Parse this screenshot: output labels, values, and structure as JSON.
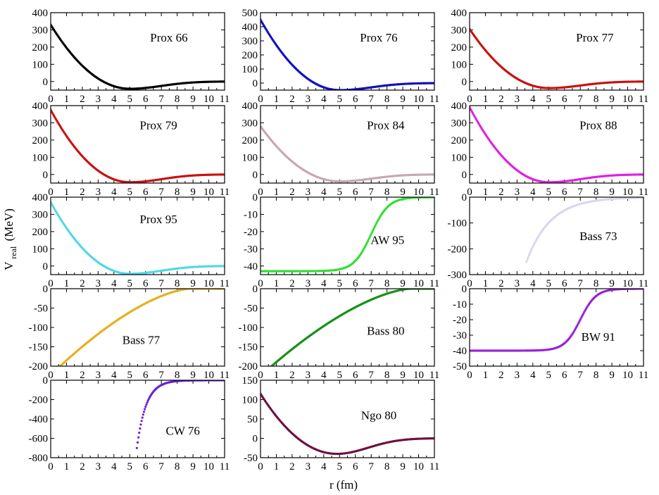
{
  "figure": {
    "xlabel": "r (fm)",
    "ylabel_main": "V",
    "ylabel_sub": "real",
    "ylabel_unit": "(MeV)",
    "x_ticks": [
      0,
      1,
      2,
      3,
      4,
      5,
      6,
      7,
      8,
      9,
      10,
      11
    ]
  },
  "chart_data": [
    {
      "type": "scatter",
      "label": "Prox 66",
      "color": "#000000",
      "xlim": [
        0,
        11
      ],
      "ylim": [
        -50,
        400
      ],
      "yticks": [
        0,
        100,
        200,
        300,
        400
      ],
      "model": {
        "kind": "prox",
        "v0": 330,
        "vmin": -42,
        "rmin": 5.0,
        "tail": 0.5
      }
    },
    {
      "type": "scatter",
      "label": "Prox 76",
      "color": "#1010c0",
      "xlim": [
        0,
        11
      ],
      "ylim": [
        -50,
        500
      ],
      "yticks": [
        0,
        100,
        200,
        300,
        400,
        500
      ],
      "model": {
        "kind": "prox",
        "v0": 450,
        "vmin": -50,
        "rmin": 5.0,
        "tail": 0.4
      }
    },
    {
      "type": "scatter",
      "label": "Prox 77",
      "color": "#cc1010",
      "xlim": [
        0,
        11
      ],
      "ylim": [
        -50,
        400
      ],
      "yticks": [
        0,
        100,
        200,
        300,
        400
      ],
      "model": {
        "kind": "prox",
        "v0": 305,
        "vmin": -38,
        "rmin": 5.0,
        "tail": 0.5
      }
    },
    {
      "type": "scatter",
      "label": "Prox 79",
      "color": "#cc1010",
      "xlim": [
        0,
        11
      ],
      "ylim": [
        -50,
        400
      ],
      "yticks": [
        0,
        100,
        200,
        300,
        400
      ],
      "model": {
        "kind": "prox",
        "v0": 375,
        "vmin": -45,
        "rmin": 5.0,
        "tail": 0.5
      }
    },
    {
      "type": "scatter",
      "label": "Prox 84",
      "color": "#c8a8b0",
      "xlim": [
        0,
        11
      ],
      "ylim": [
        -50,
        400
      ],
      "yticks": [
        0,
        100,
        200,
        300,
        400
      ],
      "model": {
        "kind": "prox",
        "v0": 280,
        "vmin": -40,
        "rmin": 5.0,
        "tail": 0.5
      }
    },
    {
      "type": "scatter",
      "label": "Prox 88",
      "color": "#e020e0",
      "xlim": [
        0,
        11
      ],
      "ylim": [
        -50,
        400
      ],
      "yticks": [
        0,
        100,
        200,
        300,
        400
      ],
      "model": {
        "kind": "prox",
        "v0": 390,
        "vmin": -45,
        "rmin": 5.0,
        "tail": 0.5
      }
    },
    {
      "type": "scatter",
      "label": "Prox 95",
      "color": "#50d8e8",
      "xlim": [
        0,
        11
      ],
      "ylim": [
        -50,
        400
      ],
      "yticks": [
        0,
        100,
        200,
        300,
        400
      ],
      "model": {
        "kind": "prox",
        "v0": 370,
        "vmin": -45,
        "rmin": 5.0,
        "tail": 0.5
      }
    },
    {
      "type": "scatter",
      "label": "AW 95",
      "color": "#30e030",
      "xlim": [
        0,
        11
      ],
      "ylim": [
        -45,
        0
      ],
      "yticks": [
        -40,
        -30,
        -20,
        -10,
        0
      ],
      "model": {
        "kind": "woods",
        "v0": -43,
        "r0": 7.0,
        "a": 0.55
      }
    },
    {
      "type": "scatter",
      "label": "Bass 73",
      "color": "#d8d8ec",
      "xlim": [
        0,
        11
      ],
      "ylim": [
        -300,
        0
      ],
      "yticks": [
        -300,
        -200,
        -100,
        0
      ],
      "model": {
        "kind": "bass73",
        "xstart": 3.6,
        "a": 250,
        "b": 0.66
      }
    },
    {
      "type": "scatter",
      "label": "Bass 77",
      "color": "#e8b020",
      "xlim": [
        0,
        11
      ],
      "ylim": [
        -200,
        0
      ],
      "yticks": [
        -200,
        -150,
        -100,
        -50,
        0
      ],
      "model": {
        "kind": "bass",
        "xstart": 0.6,
        "k": 0.35,
        "rend": 8.8
      }
    },
    {
      "type": "scatter",
      "label": "Bass 80",
      "color": "#189018",
      "xlim": [
        0,
        11
      ],
      "ylim": [
        -200,
        0
      ],
      "yticks": [
        -200,
        -150,
        -100,
        -50,
        0
      ],
      "model": {
        "kind": "bass",
        "xstart": 0.7,
        "k": 0.38,
        "rend": 9.5
      }
    },
    {
      "type": "scatter",
      "label": "BW 91",
      "color": "#9a20d8",
      "xlim": [
        0,
        11
      ],
      "ylim": [
        -50,
        0
      ],
      "yticks": [
        -50,
        -40,
        -30,
        -20,
        -10,
        0
      ],
      "model": {
        "kind": "woods",
        "v0": -40,
        "r0": 7.0,
        "a": 0.5
      }
    },
    {
      "type": "scatter",
      "label": "CW 76",
      "color": "#6a20d8",
      "xlim": [
        0,
        11
      ],
      "ylim": [
        -800,
        0
      ],
      "yticks": [
        -800,
        -600,
        -400,
        -200,
        0
      ],
      "model": {
        "kind": "cw",
        "xstart": 5.45,
        "a": 14000,
        "k": 1.7,
        "xend": 11
      }
    },
    {
      "type": "scatter",
      "label": "Ngo 80",
      "color": "#701040",
      "xlim": [
        0,
        11
      ],
      "ylim": [
        -50,
        150
      ],
      "yticks": [
        -50,
        0,
        50,
        100,
        150
      ],
      "model": {
        "kind": "prox",
        "v0": 115,
        "vmin": -40,
        "rmin": 4.8,
        "tail": 0.4
      }
    }
  ]
}
